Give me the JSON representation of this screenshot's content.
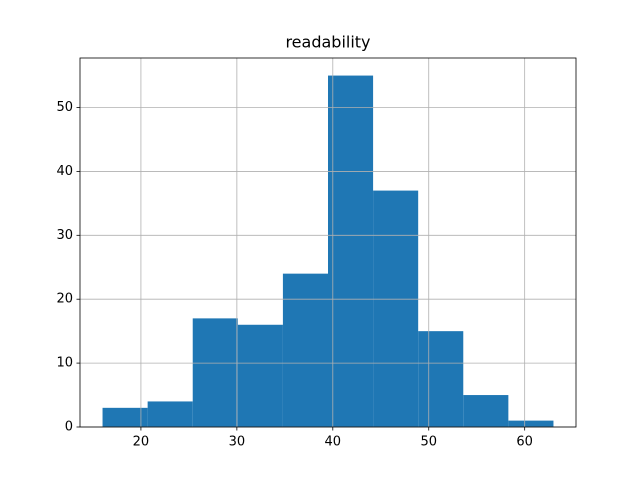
{
  "chart_data": {
    "type": "histogram",
    "title": "readability",
    "bins": [
      16,
      20.7,
      25.4,
      30.1,
      34.8,
      39.5,
      44.2,
      48.9,
      53.6,
      58.3,
      63
    ],
    "values": [
      3,
      4,
      17,
      16,
      24,
      55,
      37,
      15,
      5,
      1
    ],
    "color": "#1f77b4",
    "xlim": [
      13.65,
      65.35
    ],
    "xticks": [
      20,
      30,
      40,
      50,
      60
    ],
    "ylim": [
      0,
      57.75
    ],
    "yticks": [
      0,
      10,
      20,
      30,
      40,
      50
    ],
    "grid": true
  }
}
